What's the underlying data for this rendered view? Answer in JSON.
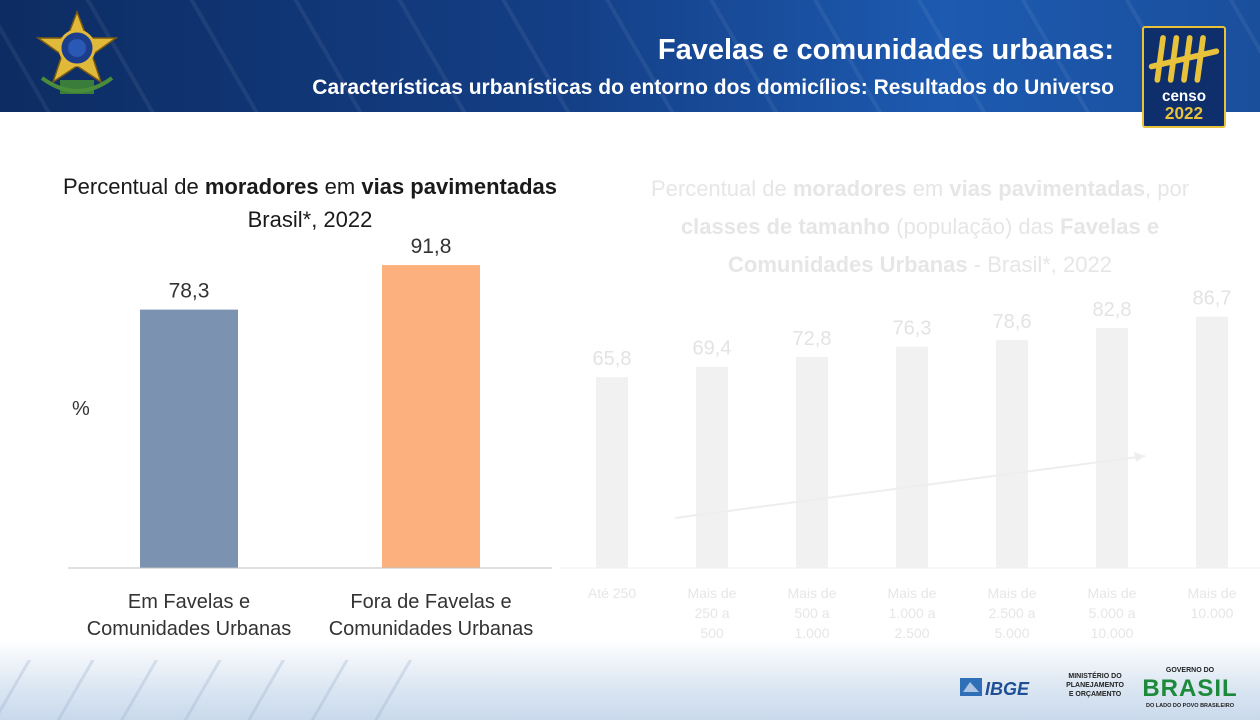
{
  "header": {
    "title": "Favelas e comunidades urbanas:",
    "subtitle": "Características urbanísticas do entorno dos domicílios: Resultados do Universo",
    "censo_label": "censo",
    "censo_year": "2022"
  },
  "chart_data": [
    {
      "type": "bar",
      "title_parts": [
        "Percentual de ",
        "moradores",
        " em ",
        "vias pavimentadas"
      ],
      "subtitle": "Brasil*, 2022",
      "ylabel": "%",
      "categories": [
        "Em Favelas e\nComunidades Urbanas",
        "Fora de Favelas e\nComunidades Urbanas"
      ],
      "values": [
        78.3,
        91.8
      ],
      "value_labels": [
        "78,3",
        "91,8"
      ],
      "colors": [
        "#7b93b0",
        "#fbb07e"
      ],
      "ylim": [
        0,
        100
      ]
    },
    {
      "type": "bar",
      "faded": true,
      "title_parts": [
        "Percentual de ",
        "moradores",
        " em ",
        "vias pavimentadas",
        ", por ",
        "classes de tamanho",
        " (população) das ",
        "Favelas e Comunidades Urbanas",
        " - Brasil*, 2022"
      ],
      "categories": [
        "Até 250",
        "Mais de\n250 a\n500",
        "Mais de\n500 a\n1.000",
        "Mais de\n1.000 a\n2.500",
        "Mais de\n2.500 a\n5.000",
        "Mais de\n5.000 a\n10.000",
        "Mais de\n10.000"
      ],
      "values": [
        65.8,
        69.4,
        72.8,
        76.3,
        78.6,
        82.8,
        86.7
      ],
      "value_labels": [
        "65,8",
        "69,4",
        "72,8",
        "76,3",
        "78,6",
        "82,8",
        "86,7"
      ],
      "ylim": [
        0,
        100
      ]
    }
  ],
  "footer": {
    "ibge": "IBGE",
    "ministerio": "MINISTÉRIO DO\nPLANEJAMENTO\nE ORÇAMENTO",
    "governo": "GOVERNO DO",
    "brasil": "BRASIL",
    "slogan": "DO LADO DO POVO BRASILEIRO"
  }
}
